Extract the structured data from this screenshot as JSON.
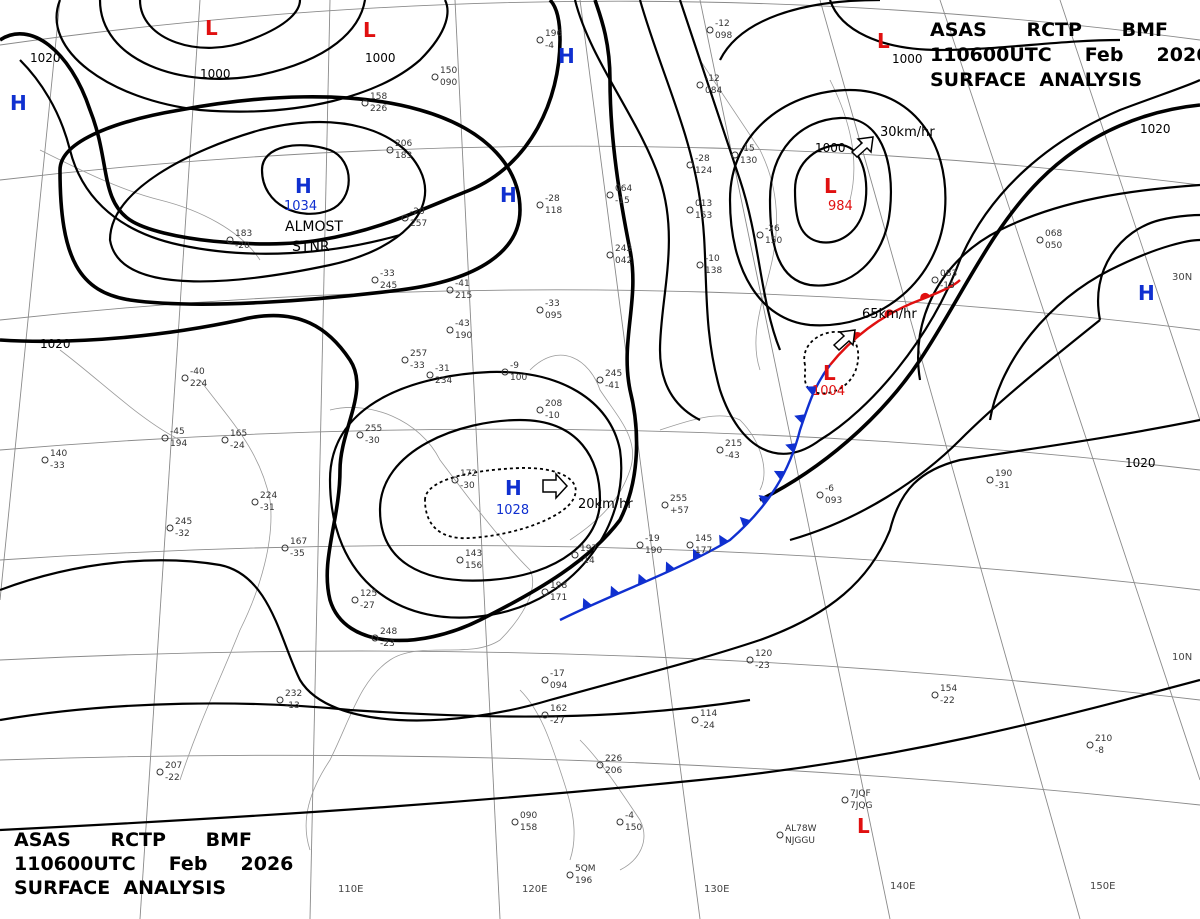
{
  "header_top_right": {
    "line1": "ASAS      RCTP      BMF",
    "line2": "110600UTC     Feb     2026",
    "line3": "SURFACE  ANALYSIS"
  },
  "header_bottom_left": {
    "line1": "ASAS      RCTP      BMF",
    "line2": "110600UTC     Feb     2026",
    "line3": "SURFACE  ANALYSIS"
  },
  "isobar_labels": [
    "1020",
    "1000",
    "1000",
    "1000",
    "1000",
    "1020",
    "1020",
    "1020"
  ],
  "pressure_systems": [
    {
      "type": "H",
      "pressure": "1034",
      "note": "ALMOST\nSTNR"
    },
    {
      "type": "H",
      "pressure": "1028",
      "motion": "20km/hr"
    },
    {
      "type": "L",
      "pressure": "984",
      "motion": "30km/hr"
    },
    {
      "type": "L",
      "pressure": "1004",
      "motion": "65km/hr"
    },
    {
      "type": "H",
      "pressure": ""
    },
    {
      "type": "H",
      "pressure": ""
    },
    {
      "type": "H",
      "pressure": ""
    },
    {
      "type": "L",
      "pressure": ""
    },
    {
      "type": "L",
      "pressure": ""
    },
    {
      "type": "L",
      "pressure": ""
    },
    {
      "type": "L",
      "pressure": ""
    }
  ],
  "note_almost": "ALMOST",
  "note_stnr": "STNR",
  "lon_labels": [
    "110E",
    "120E",
    "130E",
    "140E",
    "150E"
  ],
  "lat_labels": [
    "30N",
    "10N"
  ],
  "stations": [
    "196",
    "-4",
    "150",
    "090",
    "158",
    "226",
    "206",
    "183",
    "-20",
    "257",
    "-33",
    "245",
    "-41",
    "215",
    "-43",
    "190",
    "-31",
    "234",
    "-9",
    "100",
    "-33",
    "095",
    "-40",
    "224",
    "-45",
    "194",
    "165",
    "-24",
    "255",
    "-30",
    "140",
    "-33",
    "245",
    "-32",
    "224",
    "-31",
    "167",
    "-35",
    "172",
    "-30",
    "143",
    "156",
    "125",
    "-27",
    "248",
    "-23",
    "232",
    "-13",
    "207",
    "-22",
    "208",
    "-10",
    "197",
    "-14",
    "198",
    "171",
    "-19",
    "190",
    "255",
    "+57",
    "145",
    "177",
    "-6",
    "093",
    "083",
    "-13",
    "068",
    "050",
    "064",
    "-15",
    "242",
    "042",
    "013",
    "153",
    "-28",
    "124",
    "-15",
    "130",
    "-26",
    "150",
    "-10",
    "138",
    "-28",
    "118",
    "-12",
    "084",
    "-12",
    "098",
    "-17",
    "094",
    "162",
    "-27",
    "114",
    "-24",
    "120",
    "-23",
    "154",
    "-22",
    "210",
    "-8",
    "7JQF",
    "7JQG",
    "AL78W",
    "NJGGU",
    "5QM"
  ],
  "front_color_cold": "#1030d0",
  "front_color_warm": "#e01010"
}
